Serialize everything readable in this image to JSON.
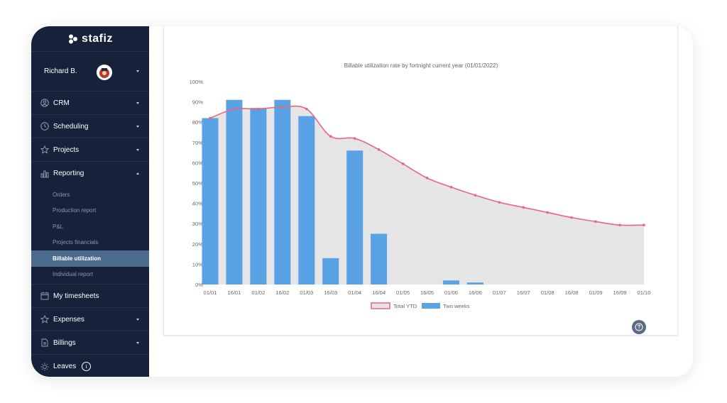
{
  "app": {
    "logo_text": "stafiz"
  },
  "user": {
    "name": "Richard B."
  },
  "nav": {
    "crm": "CRM",
    "scheduling": "Scheduling",
    "projects": "Projects",
    "reporting": "Reporting",
    "reporting_items": [
      "Orders",
      "Production report",
      "P&L",
      "Projects financials",
      "Billable utilization",
      "Individual report"
    ],
    "reporting_active": "Billable utilization",
    "my_timesheets": "My timesheets",
    "expenses": "Expenses",
    "billings": "Billings",
    "leaves": "Leaves",
    "leaves_info": "i"
  },
  "chart_data": {
    "type": "bar",
    "title": "Billable utilization rate by fortnight current year (01/01/2022)",
    "categories": [
      "01/01",
      "16/01",
      "01/02",
      "16/02",
      "01/03",
      "16/03",
      "01/04",
      "16/04",
      "01/05",
      "16/05",
      "01/06",
      "16/06",
      "01/07",
      "16/07",
      "01/08",
      "16/08",
      "01/09",
      "16/09",
      "01/10"
    ],
    "y_ticks": [
      "0%",
      "10%",
      "20%",
      "30%",
      "40%",
      "50%",
      "60%",
      "70%",
      "80%",
      "90%",
      "100%"
    ],
    "ylim": [
      0,
      100
    ],
    "series": [
      {
        "name": "Two weeks",
        "kind": "bar",
        "color": "#5aa2e6",
        "values": [
          82,
          91,
          87,
          91,
          83,
          13,
          66,
          25,
          null,
          null,
          2,
          1,
          null,
          null,
          null,
          null,
          null,
          null,
          null
        ]
      },
      {
        "name": "Total YTD",
        "kind": "line",
        "color": "#e8677f",
        "fill": "#e5e5e5",
        "values": [
          82,
          86.5,
          86.5,
          87.5,
          86.5,
          73,
          72,
          66.5,
          59.5,
          52.5,
          48,
          44,
          40.5,
          38,
          35.5,
          33,
          31,
          29.3,
          29.3
        ]
      }
    ],
    "legend": [
      {
        "name": "Total YTD",
        "kind": "line"
      },
      {
        "name": "Two weeks",
        "kind": "bar"
      }
    ],
    "legend_position": "bottom",
    "grid": false
  }
}
